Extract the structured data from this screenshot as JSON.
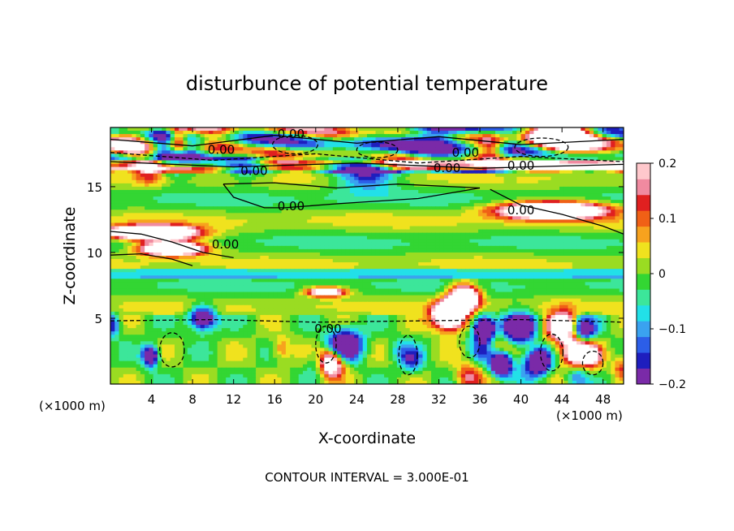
{
  "chart_data": {
    "type": "heatmap",
    "title": "disturbunce of potential temperature",
    "xlabel": "X-coordinate",
    "ylabel": "Z-coordinate",
    "x_unit": "(×1000 m)",
    "x_unit_right": "(×1000 m)",
    "x_ticks": [
      "4",
      "8",
      "12",
      "16",
      "20",
      "24",
      "28",
      "32",
      "36",
      "40",
      "44",
      "48"
    ],
    "y_ticks": [
      "5",
      "10",
      "15"
    ],
    "xlim": [
      0,
      50
    ],
    "ylim": [
      0,
      19.5
    ],
    "colorbar": {
      "min": -0.2,
      "max": 0.2,
      "tick_labels": [
        "0.2",
        "0.1",
        "0",
        "−0.1",
        "−0.2"
      ],
      "colors": [
        "#7a2aa8",
        "#1e1ebe",
        "#2c5ee8",
        "#3aa2f0",
        "#22e0e8",
        "#3ce69a",
        "#33d633",
        "#9adc22",
        "#f0e21e",
        "#f7a21e",
        "#f06016",
        "#e02020",
        "#f08aa0",
        "#ffc8cc"
      ]
    },
    "contour_interval_text": "CONTOUR INTERVAL = 3.000E-01",
    "contour_labels": [
      {
        "text": "0.00",
        "x": 17.6,
        "y": 19.0
      },
      {
        "text": "0.00",
        "x": 10.8,
        "y": 17.8
      },
      {
        "text": "0.00",
        "x": 34.6,
        "y": 17.6
      },
      {
        "text": "0.00",
        "x": 32.8,
        "y": 16.4
      },
      {
        "text": "0.00",
        "x": 40.0,
        "y": 16.6
      },
      {
        "text": "0.00",
        "x": 14.0,
        "y": 16.2
      },
      {
        "text": "0.00",
        "x": 17.6,
        "y": 13.5
      },
      {
        "text": "0.00",
        "x": 40.0,
        "y": 13.2
      },
      {
        "text": "0.00",
        "x": 11.2,
        "y": 10.6
      },
      {
        "text": "0.00",
        "x": 21.2,
        "y": 4.2
      }
    ]
  }
}
